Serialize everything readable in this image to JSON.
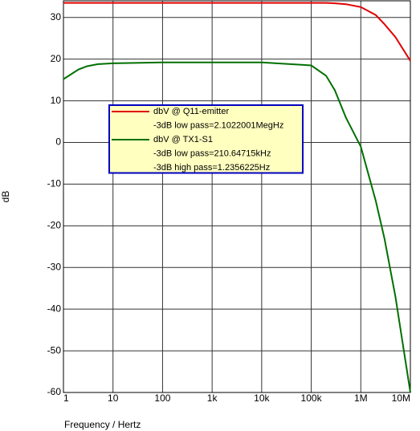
{
  "chart_data": {
    "type": "line",
    "x_label": "Frequency / Hertz",
    "y_label": "dB",
    "x": [
      1,
      2,
      3,
      5,
      10,
      100,
      1000,
      10000,
      100000,
      200000,
      300000,
      500000,
      1000000,
      2000000,
      3000000,
      5000000,
      10000000
    ],
    "series": [
      {
        "name": "dbV @ Q11-emitter",
        "color": "#e00000",
        "notes": [
          "-3dB low pass=2.1022001MegHz"
        ],
        "values": [
          33.5,
          33.5,
          33.5,
          33.5,
          33.5,
          33.5,
          33.5,
          33.5,
          33.5,
          33.5,
          33.4,
          33.2,
          32.5,
          30.6,
          28.4,
          25.3,
          19.6
        ]
      },
      {
        "name": "dbV @ TX1-S1",
        "color": "#007000",
        "notes": [
          "-3dB low pass=210.64715kHz",
          "-3dB high pass=1.2356225Hz"
        ],
        "values": [
          15.2,
          17.5,
          18.3,
          18.8,
          19.0,
          19.2,
          19.2,
          19.2,
          18.5,
          16.0,
          12.5,
          6.0,
          -1.0,
          -14.0,
          -23.0,
          -37.0,
          -60.0
        ]
      }
    ],
    "log_x": true,
    "xlim": [
      1,
      10000000
    ],
    "xticks": [
      1,
      10,
      100,
      {
        "value": 1000,
        "label": "1k"
      },
      {
        "value": 10000,
        "label": "10k"
      },
      {
        "value": 100000,
        "label": "100k"
      },
      {
        "value": 1000000,
        "label": "1M"
      },
      {
        "value": 10000000,
        "label": "10M"
      }
    ],
    "ylim": [
      -60,
      34
    ],
    "yticks": [
      30,
      20,
      10,
      0,
      -10,
      -20,
      -30,
      -40,
      -50,
      -60
    ],
    "grid": true
  }
}
